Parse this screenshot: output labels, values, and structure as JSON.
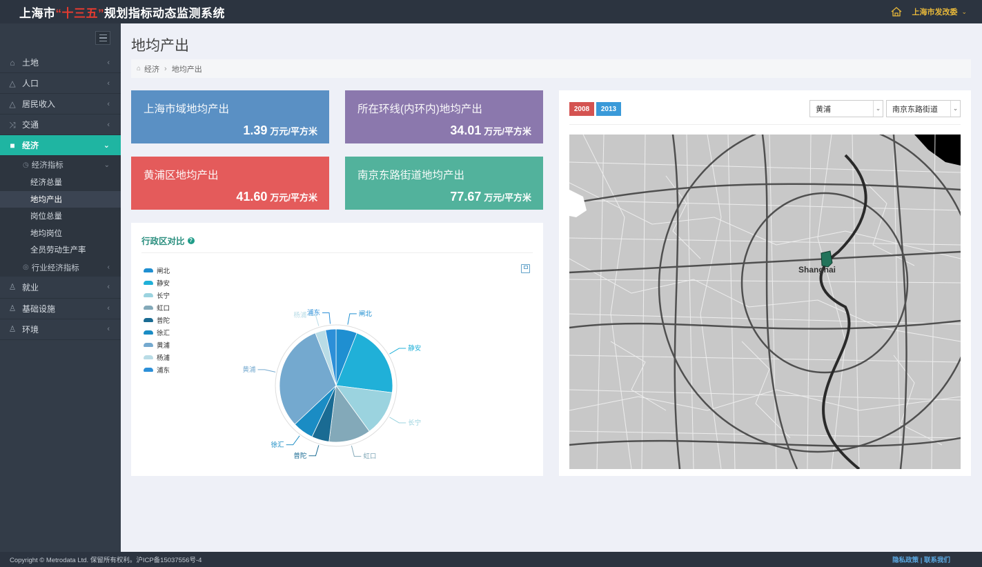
{
  "header": {
    "title_prefix": "上海市",
    "title_highlight": "“十三五”",
    "title_suffix": "规划指标动态监测系统",
    "user": "上海市发改委"
  },
  "sidebar": {
    "items": [
      {
        "label": "土地",
        "icon": "home-icon"
      },
      {
        "label": "人口",
        "icon": "bag-icon"
      },
      {
        "label": "居民收入",
        "icon": "bag-icon"
      },
      {
        "label": "交通",
        "icon": "shuffle-icon"
      },
      {
        "label": "经济",
        "icon": "briefcase-icon",
        "active": true
      },
      {
        "label": "就业",
        "icon": "user-icon"
      },
      {
        "label": "基础设施",
        "icon": "user-icon"
      },
      {
        "label": "环境",
        "icon": "user-icon"
      }
    ],
    "sub_group": "经济指标",
    "sub_items": [
      "经济总量",
      "地均产出",
      "岗位总量",
      "地均岗位",
      "全员劳动生产率"
    ],
    "sub_group2": "行业经济指标"
  },
  "page": {
    "title": "地均产出",
    "breadcrumb": [
      "经济",
      "地均产出"
    ]
  },
  "stats": [
    {
      "title": "上海市域地均产出",
      "value": "1.39",
      "unit": "万元/平方米",
      "color": "#5a90c4"
    },
    {
      "title": "所在环线(内环内)地均产出",
      "value": "34.01",
      "unit": "万元/平方米",
      "color": "#8b78ad"
    },
    {
      "title": "黄浦区地均产出",
      "value": "41.60",
      "unit": "万元/平方米",
      "color": "#e45b5b"
    },
    {
      "title": "南京东路街道地均产出",
      "value": "77.67",
      "unit": "万元/平方米",
      "color": "#52b29c"
    }
  ],
  "chart_panel": {
    "title": "行政区对比"
  },
  "chart_data": {
    "type": "pie",
    "categories": [
      "闸北",
      "静安",
      "长宁",
      "虹口",
      "普陀",
      "徐汇",
      "黄浦",
      "杨浦",
      "浦东"
    ],
    "values": [
      6,
      21,
      13,
      12,
      5,
      6,
      31,
      3,
      3
    ],
    "colors": [
      "#1f8fd1",
      "#20b0d8",
      "#9bd3df",
      "#83a9b9",
      "#1a6b93",
      "#1a8cc4",
      "#74a9cf",
      "#b9dce6",
      "#2c8fd8"
    ]
  },
  "map_panel": {
    "years": [
      "2008",
      "2013"
    ],
    "district": "黄浦",
    "street": "南京东路街道",
    "map_label": "Shanghai"
  },
  "footer": {
    "copyright": "Copyright © Metrodata Ltd. 保留所有权利。沪ICP备15037556号-4",
    "links": "隐私政策 | 联系我们"
  }
}
